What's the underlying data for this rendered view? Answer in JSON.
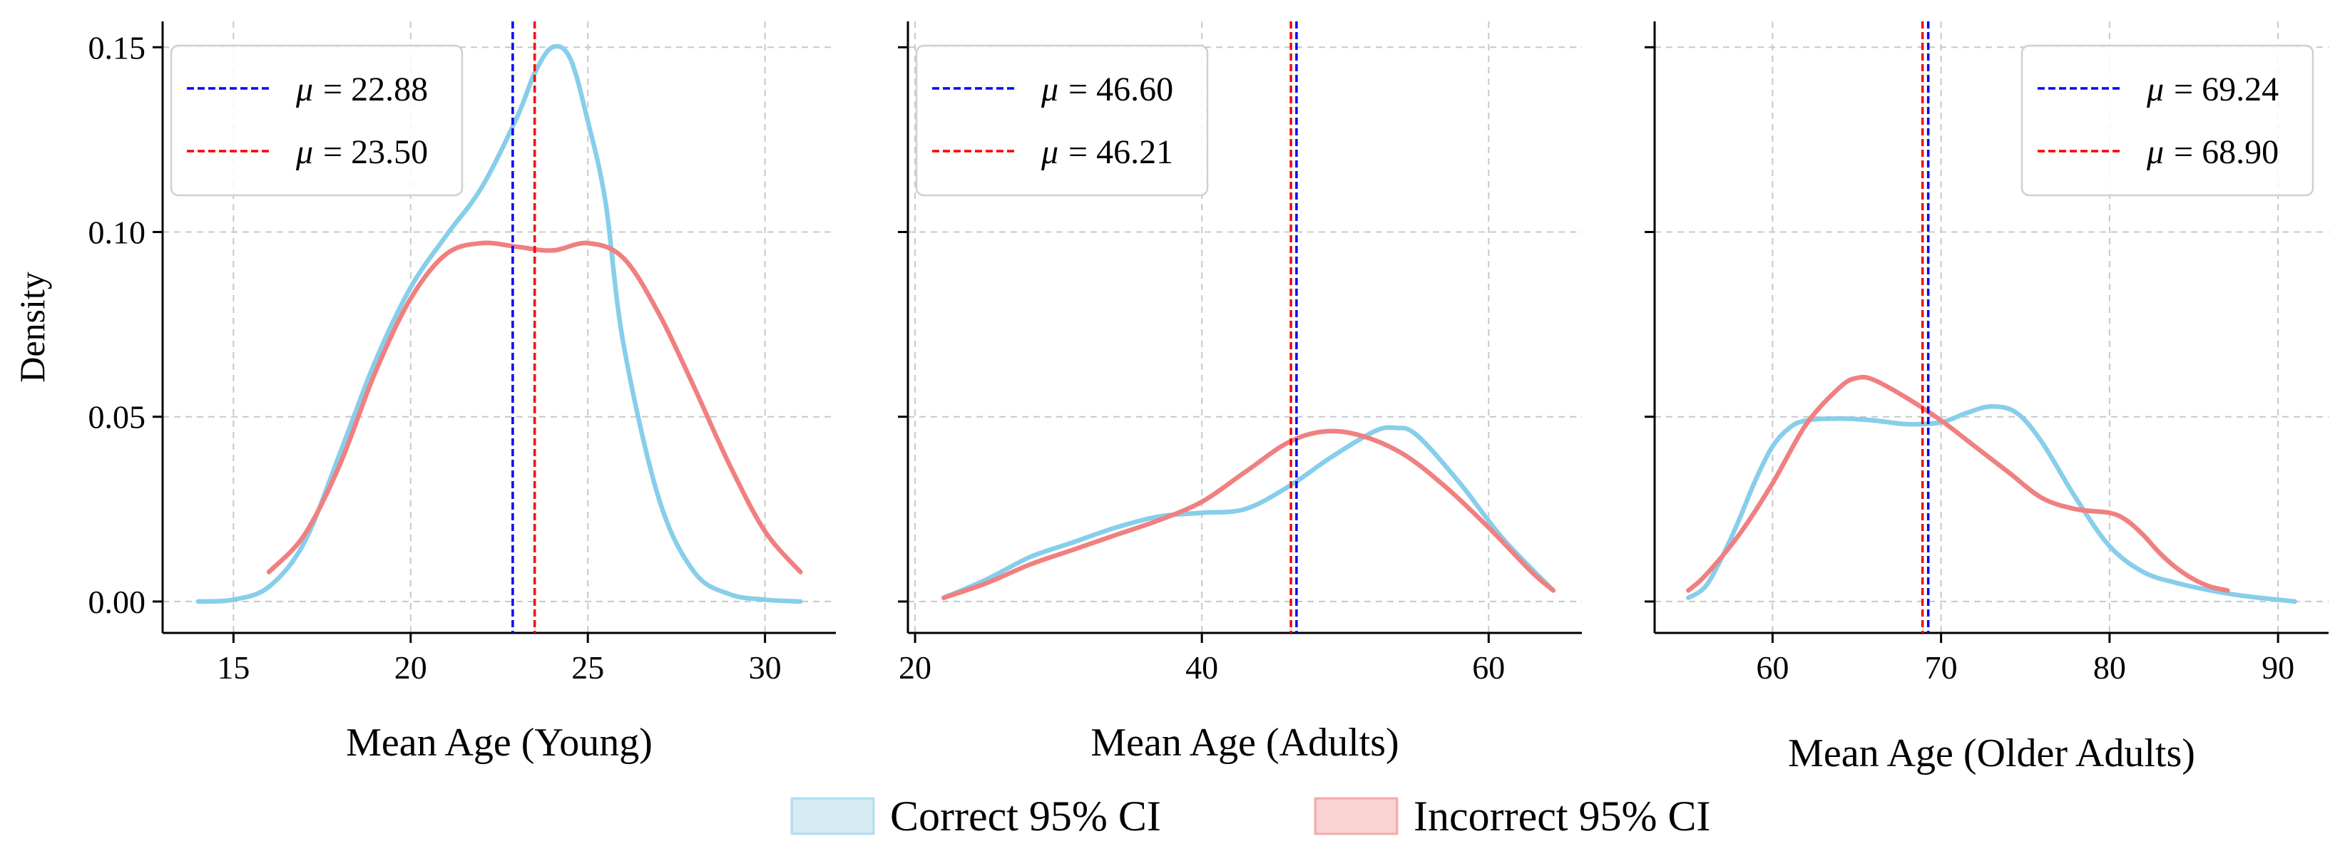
{
  "chart_data": [
    {
      "type": "line",
      "xlabel": "Mean Age (Young)",
      "ylabel": "Density",
      "xlim": [
        13,
        32
      ],
      "ylim": [
        -0.0085,
        0.157
      ],
      "xticks": [
        15,
        20,
        25,
        30
      ],
      "xtick_labels": [
        "15",
        "20",
        "25",
        "30"
      ],
      "yticks": [
        0.0,
        0.05,
        0.1,
        0.15
      ],
      "ytick_labels": [
        "0.00",
        "0.05",
        "0.10",
        "0.15"
      ],
      "legend_position": "top-left",
      "grid": true,
      "series": [
        {
          "name": "Correct",
          "color": "#87CEEB",
          "x": [
            14,
            15,
            16,
            17,
            18,
            19,
            20,
            21,
            22,
            23,
            23.5,
            24,
            24.5,
            25,
            25.5,
            26,
            27,
            28,
            29,
            30,
            31
          ],
          "y": [
            0.0,
            0.0005,
            0.004,
            0.016,
            0.04,
            0.065,
            0.085,
            0.099,
            0.112,
            0.131,
            0.143,
            0.15,
            0.147,
            0.13,
            0.108,
            0.07,
            0.028,
            0.008,
            0.002,
            0.0005,
            0.0
          ]
        },
        {
          "name": "Incorrect",
          "color": "#F08080",
          "x": [
            16,
            17,
            18,
            19,
            20,
            21,
            22,
            23,
            24,
            25,
            26,
            27,
            28,
            29,
            30,
            31
          ],
          "y": [
            0.008,
            0.018,
            0.037,
            0.062,
            0.082,
            0.094,
            0.097,
            0.096,
            0.095,
            0.097,
            0.093,
            0.078,
            0.058,
            0.037,
            0.019,
            0.008
          ]
        }
      ],
      "mean_lines": [
        {
          "series": "Correct",
          "x": 22.88,
          "color": "#0000FF",
          "mu_symbol": "μ",
          "label": "= 22.88"
        },
        {
          "series": "Incorrect",
          "x": 23.5,
          "color": "#FF0000",
          "mu_symbol": "μ",
          "label": "= 23.50"
        }
      ]
    },
    {
      "type": "line",
      "xlabel": "Mean Age (Adults)",
      "ylabel": "",
      "xlim": [
        19.5,
        66.5
      ],
      "ylim": [
        -0.0085,
        0.157
      ],
      "xticks": [
        20,
        40,
        60
      ],
      "xtick_labels": [
        "20",
        "40",
        "60"
      ],
      "yticks": [
        0.0,
        0.05,
        0.1,
        0.15
      ],
      "ytick_labels": [],
      "legend_position": "top-left",
      "grid": true,
      "series": [
        {
          "name": "Correct",
          "color": "#87CEEB",
          "x": [
            22,
            25,
            28,
            31,
            34,
            37,
            40,
            43,
            46,
            49,
            52,
            53.5,
            55,
            58,
            61,
            64.5
          ],
          "y": [
            0.001,
            0.006,
            0.012,
            0.016,
            0.02,
            0.023,
            0.024,
            0.025,
            0.031,
            0.039,
            0.046,
            0.047,
            0.045,
            0.032,
            0.017,
            0.003
          ]
        },
        {
          "name": "Incorrect",
          "color": "#F08080",
          "x": [
            22,
            25,
            28,
            31,
            34,
            37,
            40,
            43,
            46,
            48.5,
            51,
            54,
            57,
            60,
            63,
            64.5
          ],
          "y": [
            0.001,
            0.005,
            0.01,
            0.014,
            0.018,
            0.022,
            0.027,
            0.035,
            0.043,
            0.046,
            0.045,
            0.04,
            0.031,
            0.02,
            0.008,
            0.003
          ]
        }
      ],
      "mean_lines": [
        {
          "series": "Correct",
          "x": 46.6,
          "color": "#0000FF",
          "mu_symbol": "μ",
          "label": "= 46.60"
        },
        {
          "series": "Incorrect",
          "x": 46.21,
          "color": "#FF0000",
          "mu_symbol": "μ",
          "label": "= 46.21"
        }
      ]
    },
    {
      "type": "line",
      "xlabel": "Mean Age (Older Adults)",
      "ylabel": "",
      "xlim": [
        53,
        93
      ],
      "ylim": [
        -0.0085,
        0.157
      ],
      "xticks": [
        60,
        70,
        80,
        90
      ],
      "xtick_labels": [
        "60",
        "70",
        "80",
        "90"
      ],
      "yticks": [
        0.0,
        0.05,
        0.1,
        0.15
      ],
      "ytick_labels": [],
      "legend_position": "top-right",
      "grid": true,
      "series": [
        {
          "name": "Correct",
          "color": "#87CEEB",
          "x": [
            55,
            56,
            57,
            58,
            59,
            60,
            61,
            62,
            64,
            66,
            68,
            70,
            71.5,
            73,
            74.5,
            76,
            78,
            80,
            82,
            84,
            86,
            88,
            91
          ],
          "y": [
            0.001,
            0.004,
            0.012,
            0.022,
            0.033,
            0.042,
            0.047,
            0.049,
            0.0495,
            0.049,
            0.048,
            0.0485,
            0.051,
            0.0528,
            0.051,
            0.043,
            0.028,
            0.015,
            0.008,
            0.005,
            0.003,
            0.0015,
            0.0
          ]
        },
        {
          "name": "Incorrect",
          "color": "#F08080",
          "x": [
            55,
            56,
            58,
            60,
            62,
            64,
            65,
            66,
            68,
            70,
            72,
            74,
            76,
            78,
            80,
            81,
            82,
            83,
            84,
            85,
            86,
            87
          ],
          "y": [
            0.003,
            0.007,
            0.018,
            0.032,
            0.048,
            0.058,
            0.0605,
            0.06,
            0.055,
            0.049,
            0.042,
            0.035,
            0.028,
            0.025,
            0.024,
            0.022,
            0.018,
            0.013,
            0.009,
            0.006,
            0.004,
            0.003
          ]
        }
      ],
      "mean_lines": [
        {
          "series": "Correct",
          "x": 69.24,
          "color": "#0000FF",
          "mu_symbol": "μ",
          "label": "= 69.24"
        },
        {
          "series": "Incorrect",
          "x": 68.9,
          "color": "#FF0000",
          "mu_symbol": "μ",
          "label": "= 68.90"
        }
      ]
    }
  ],
  "shared_legend": {
    "items": [
      {
        "label": "Correct 95% CI",
        "fill": "#ADD8E6",
        "stroke": "#87CEEB"
      },
      {
        "label": "Incorrect 95% CI",
        "fill": "#F4A6A6",
        "stroke": "#F08080"
      }
    ]
  }
}
